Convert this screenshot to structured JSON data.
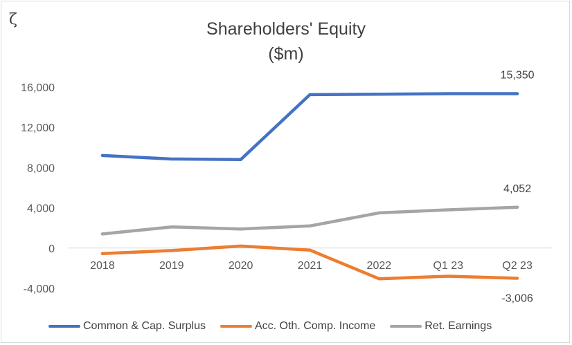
{
  "corner_mark": "ζ",
  "chart_data": {
    "type": "line",
    "title_line1": "Shareholders' Equity",
    "title_line2": "($m)",
    "categories": [
      "2018",
      "2019",
      "2020",
      "2021",
      "2022",
      "Q1 23",
      "Q2 23"
    ],
    "ylim": [
      -4000,
      16000
    ],
    "yticks": [
      "16,000",
      "12,000",
      "8,000",
      "4,000",
      "0",
      "-4,000"
    ],
    "ytick_values": [
      16000,
      12000,
      8000,
      4000,
      0,
      -4000
    ],
    "grid": false,
    "legend_position": "bottom",
    "series": [
      {
        "name": "Common & Cap. Surplus",
        "color": "#4472c4",
        "values": [
          9200,
          8850,
          8800,
          15250,
          15300,
          15350,
          15350
        ],
        "end_label": "15,350"
      },
      {
        "name": "Acc. Oth. Comp. Income",
        "color": "#ed7d31",
        "values": [
          -550,
          -250,
          200,
          -200,
          -3050,
          -2800,
          -3006
        ],
        "end_label": "-3,006"
      },
      {
        "name": "Ret. Earnings",
        "color": "#a5a5a5",
        "values": [
          1400,
          2100,
          1900,
          2200,
          3500,
          3800,
          4052
        ],
        "end_label": "4,052"
      }
    ]
  }
}
